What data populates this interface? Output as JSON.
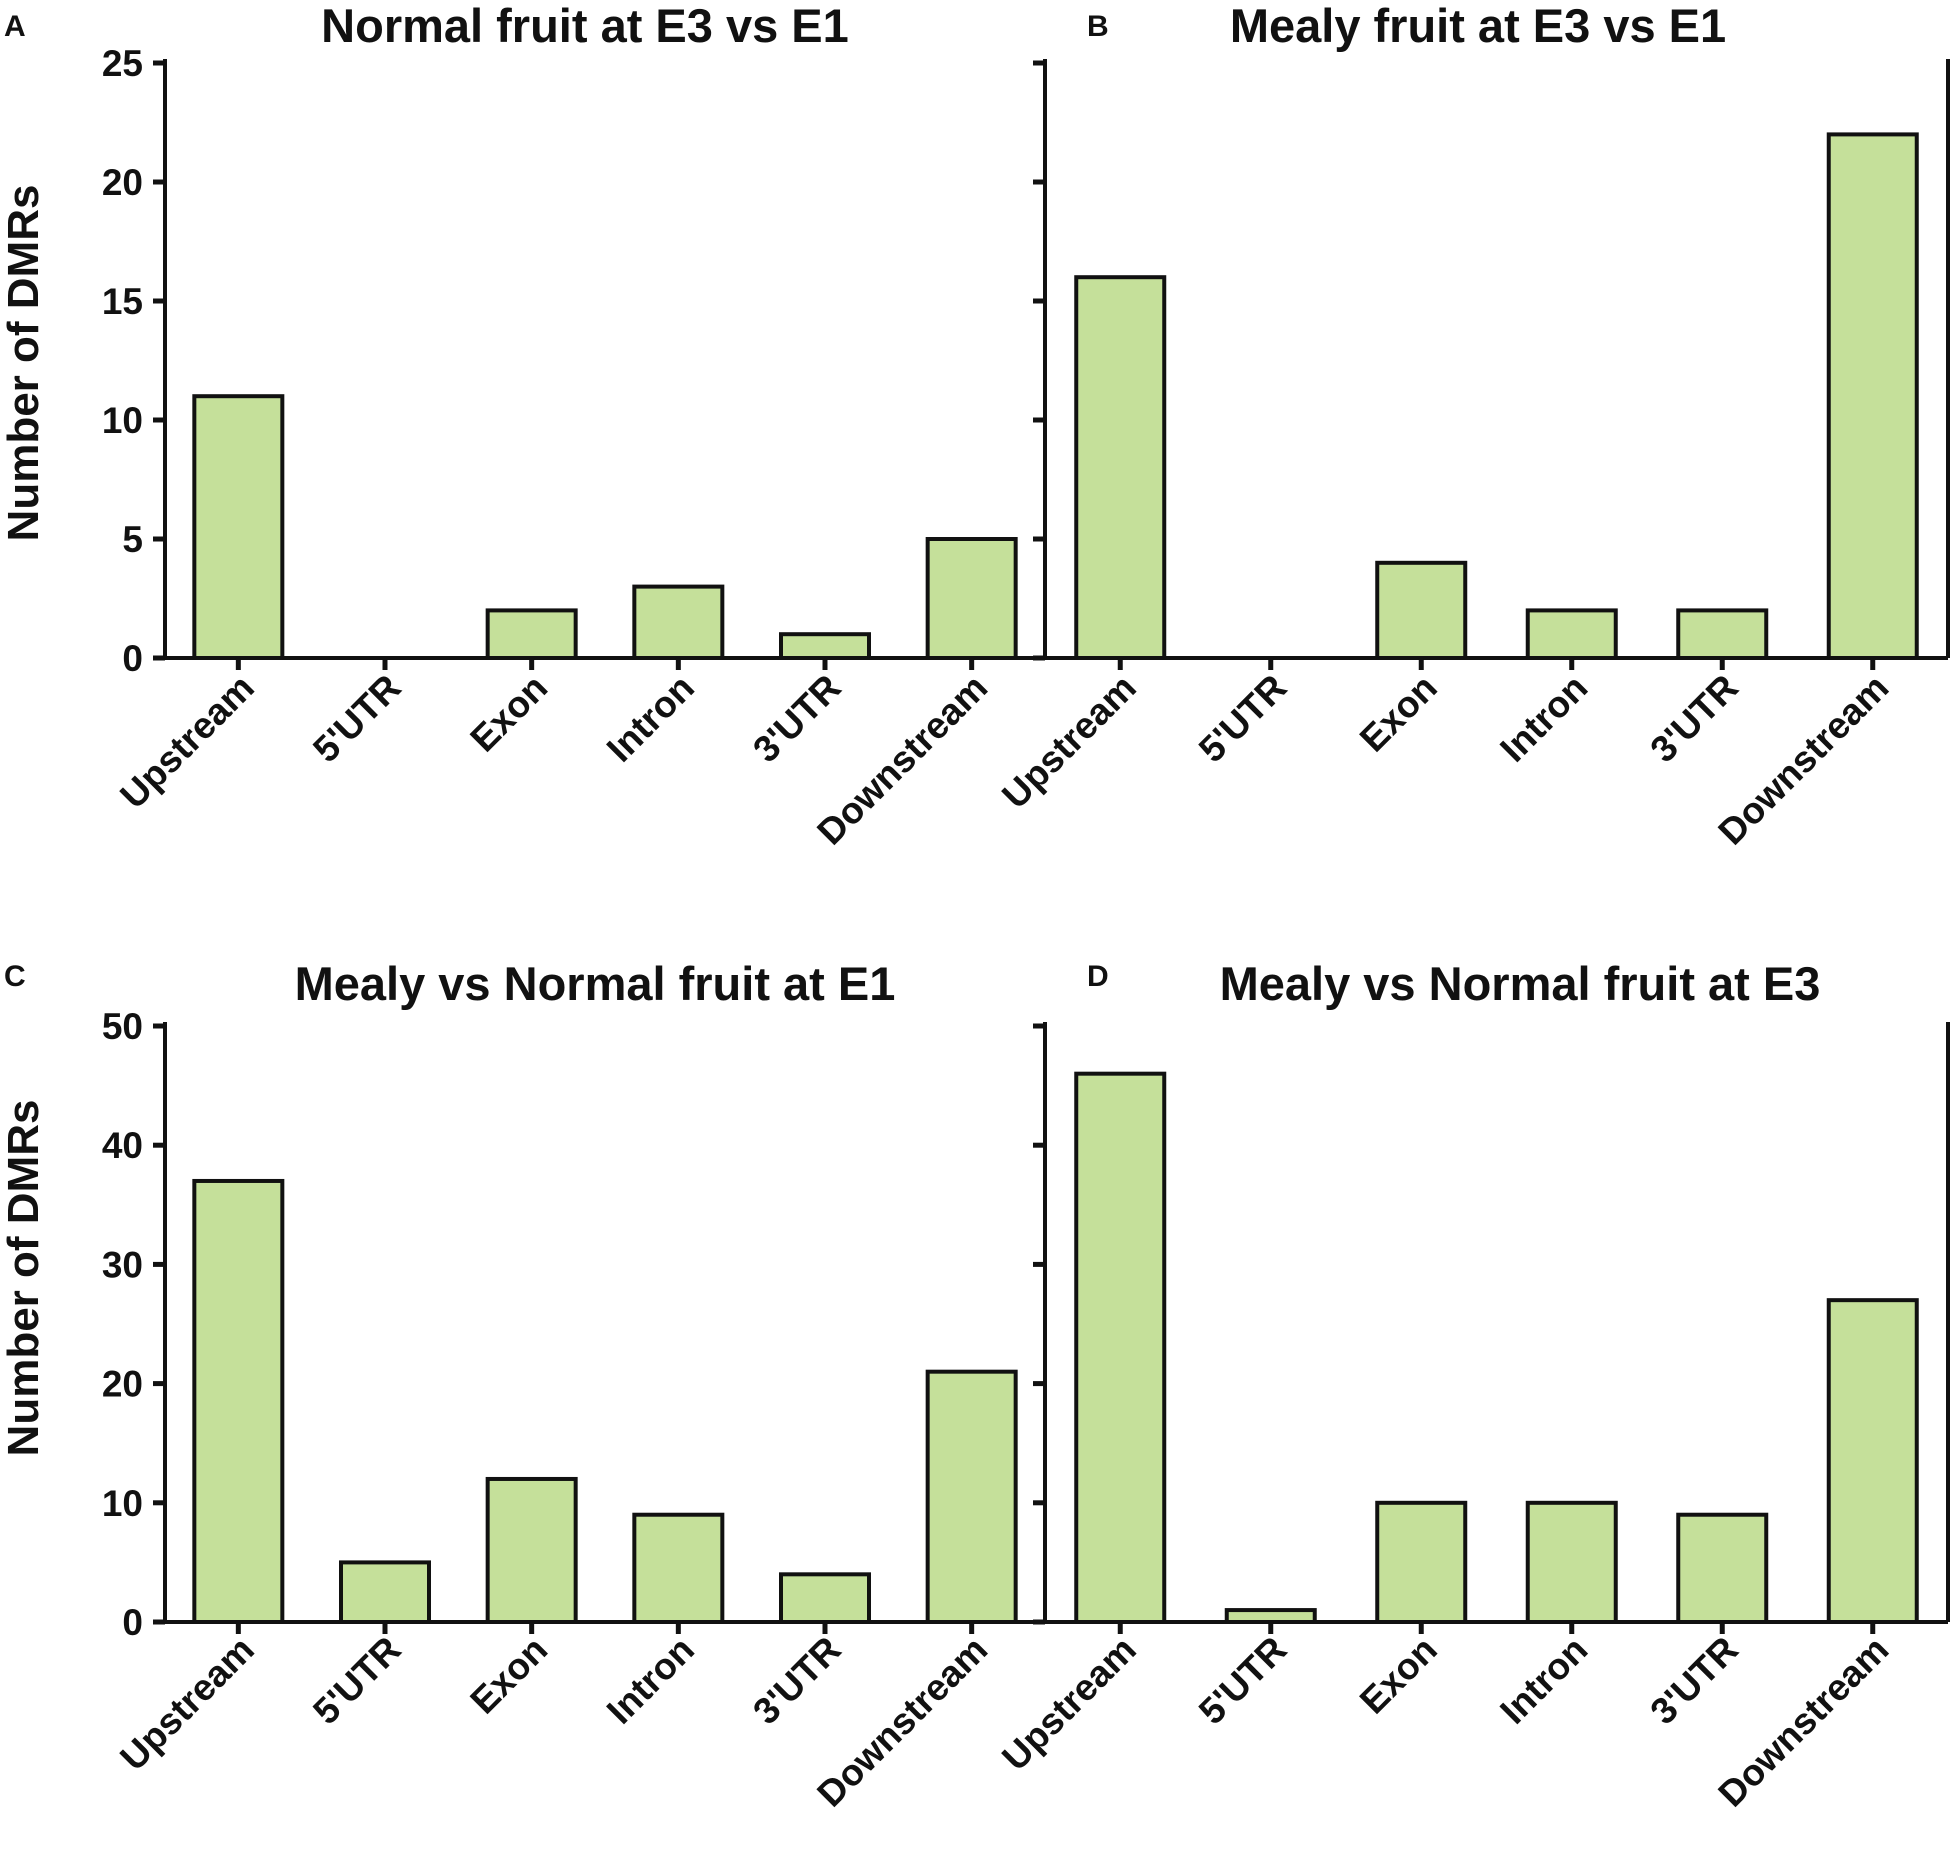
{
  "colors": {
    "bar_fill": "#c5e09a",
    "bar_stroke": "#111111",
    "axis": "#111111"
  },
  "chart_data": [
    {
      "panel": "A",
      "type": "bar",
      "title": "Normal fruit at E3 vs E1",
      "ylabel": "Number of DMRs",
      "xlabel": "",
      "categories": [
        "Upstream",
        "5'UTR",
        "Exon",
        "Intron",
        "3'UTR",
        "Downstream"
      ],
      "values": [
        11,
        0,
        2,
        3,
        1,
        5
      ],
      "ylim": [
        0,
        25
      ],
      "yticks": [
        0,
        5,
        10,
        15,
        20,
        25
      ]
    },
    {
      "panel": "B",
      "type": "bar",
      "title": "Mealy fruit at E3 vs E1",
      "ylabel": "",
      "xlabel": "",
      "categories": [
        "Upstream",
        "5'UTR",
        "Exon",
        "Intron",
        "3'UTR",
        "Downstream"
      ],
      "values": [
        16,
        0,
        4,
        2,
        2,
        22
      ],
      "ylim": [
        0,
        25
      ],
      "yticks": [
        0,
        5,
        10,
        15,
        20,
        25
      ]
    },
    {
      "panel": "C",
      "type": "bar",
      "title": "Mealy vs Normal fruit at E1",
      "ylabel": "Number of DMRs",
      "xlabel": "",
      "categories": [
        "Upstream",
        "5'UTR",
        "Exon",
        "Intron",
        "3'UTR",
        "Downstream"
      ],
      "values": [
        37,
        5,
        12,
        9,
        4,
        21
      ],
      "ylim": [
        0,
        50
      ],
      "yticks": [
        0,
        10,
        20,
        30,
        40,
        50
      ]
    },
    {
      "panel": "D",
      "type": "bar",
      "title": "Mealy vs Normal fruit at E3",
      "ylabel": "",
      "xlabel": "",
      "categories": [
        "Upstream",
        "5'UTR",
        "Exon",
        "Intron",
        "3'UTR",
        "Downstream"
      ],
      "values": [
        46,
        1,
        10,
        10,
        9,
        27
      ],
      "ylim": [
        0,
        50
      ],
      "yticks": [
        0,
        10,
        20,
        30,
        40,
        50
      ]
    }
  ]
}
